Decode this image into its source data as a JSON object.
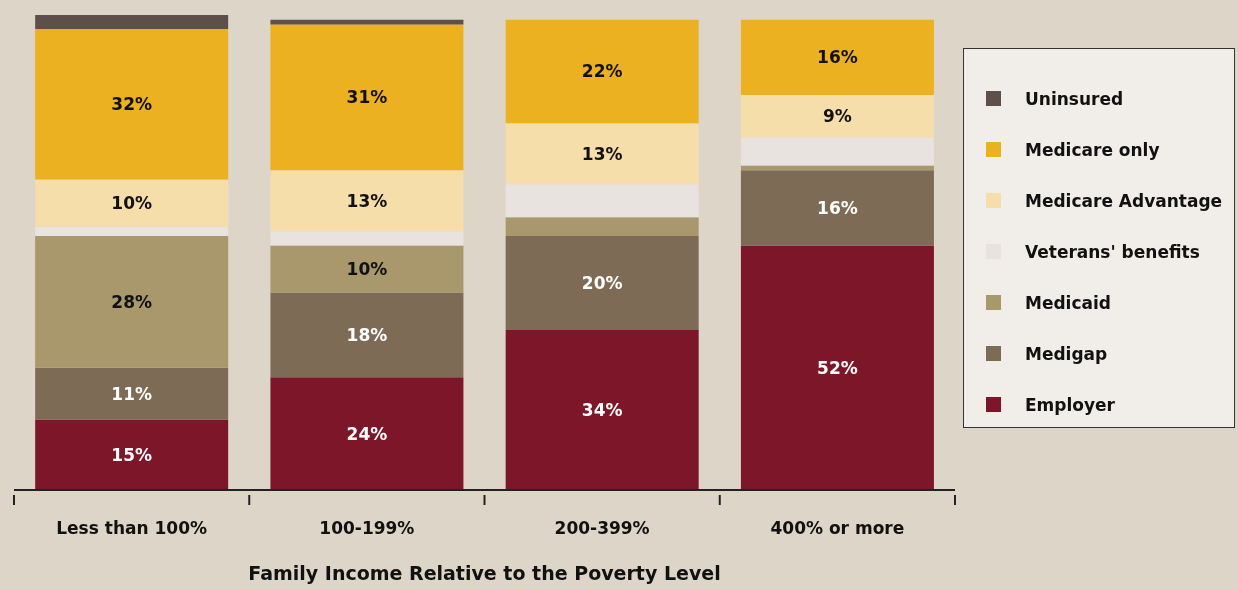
{
  "chart_data": {
    "type": "bar",
    "stacked": true,
    "xlabel": "Family Income Relative to the Poverty Level",
    "categories": [
      "Less than 100%",
      "100-199%",
      "200-399%",
      "400% or more"
    ],
    "legend": "right",
    "series": [
      {
        "name": "Employer",
        "color": "#7d1628",
        "values": [
          15,
          24,
          34,
          52
        ],
        "value_labels": [
          "15%",
          "24%",
          "34%",
          "52%"
        ]
      },
      {
        "name": "Medigap",
        "color": "#7e6b56",
        "values": [
          11,
          18,
          20,
          16
        ],
        "value_labels": [
          "11%",
          "18%",
          "20%",
          "16%"
        ]
      },
      {
        "name": "Medicaid",
        "color": "#a8986b",
        "values": [
          28,
          10,
          4,
          1
        ],
        "value_labels": [
          "28%",
          "10%",
          null,
          null
        ]
      },
      {
        "name": "Veterans' benefits",
        "color": "#e8e3df",
        "values": [
          2,
          3,
          7,
          6
        ],
        "value_labels": [
          null,
          null,
          null,
          null
        ]
      },
      {
        "name": "Medicare Advantage",
        "color": "#f5deaa",
        "values": [
          10,
          13,
          13,
          9
        ],
        "value_labels": [
          "10%",
          "13%",
          "13%",
          "9%"
        ]
      },
      {
        "name": "Medicare only",
        "color": "#ecb121",
        "values": [
          32,
          31,
          22,
          16
        ],
        "value_labels": [
          "32%",
          "31%",
          "22%",
          "16%"
        ]
      },
      {
        "name": "Uninsured",
        "color": "#5e4f4a",
        "values": [
          3,
          1,
          0,
          0
        ],
        "value_labels": [
          null,
          null,
          null,
          null
        ]
      }
    ]
  }
}
